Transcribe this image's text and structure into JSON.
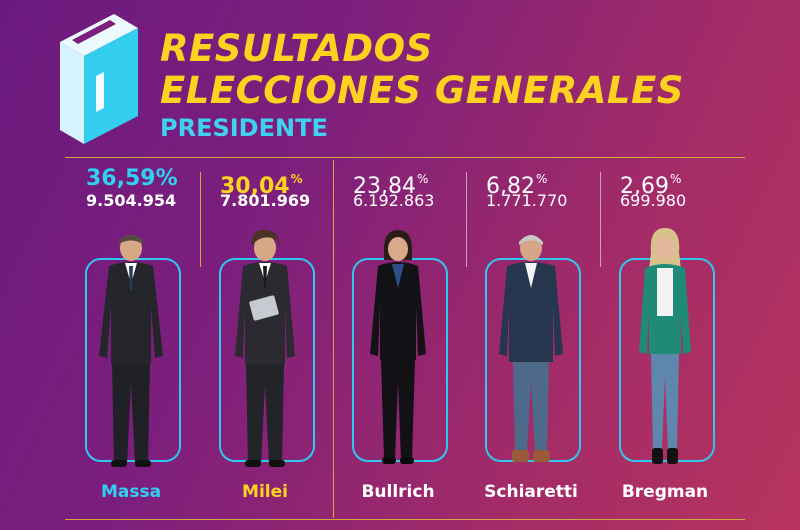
{
  "header": {
    "title_line1": "RESULTADOS",
    "title_line2": "ELECCIONES GENERALES",
    "subtitle": "PRESIDENTE",
    "logo_icon": "ballot-box-icon"
  },
  "colors": {
    "accent_yellow": "#ffd21f",
    "accent_cyan": "#2fd0f2",
    "divider_gold": "#d4a83a"
  },
  "candidates": [
    {
      "name": "Massa",
      "percent": "36,59",
      "percent_sign": "%",
      "votes": "9.504.954"
    },
    {
      "name": "Milei",
      "percent": "30,04",
      "percent_sign": "%",
      "votes": "7.801.969"
    },
    {
      "name": "Bullrich",
      "percent": "23,84",
      "percent_sign": "%",
      "votes": "6.192.863"
    },
    {
      "name": "Schiaretti",
      "percent": "6,82",
      "percent_sign": "%",
      "votes": "1.771.770"
    },
    {
      "name": "Bregman",
      "percent": "2,69",
      "percent_sign": "%",
      "votes": "699.980"
    }
  ]
}
